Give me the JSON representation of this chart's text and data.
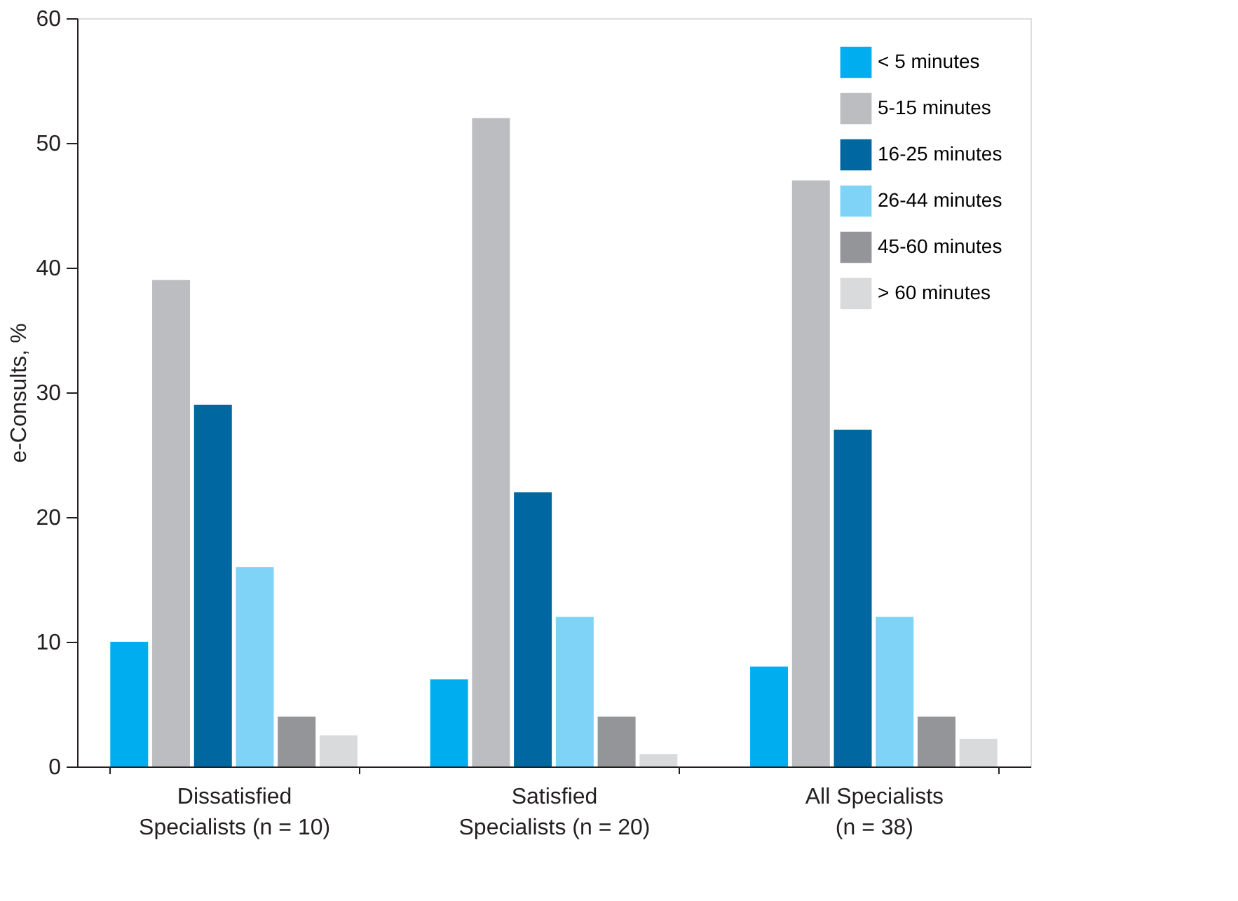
{
  "chart_data": {
    "type": "bar",
    "ylabel": "e-Consults, %",
    "categories": [
      "Dissatisfied\nSpecialists (n = 10)",
      "Satisfied\nSpecialists (n = 20)",
      "All Specialists\n(n = 38)"
    ],
    "series": [
      {
        "name": "< 5 minutes",
        "color": "#00aeef",
        "values": [
          10,
          7,
          8
        ]
      },
      {
        "name": "5-15 minutes",
        "color": "#bcbdc0",
        "values": [
          39,
          52,
          47
        ]
      },
      {
        "name": "16-25 minutes",
        "color": "#0067a0",
        "values": [
          29,
          22,
          27
        ]
      },
      {
        "name": "26-44 minutes",
        "color": "#7fd3f7",
        "values": [
          16,
          12,
          12
        ]
      },
      {
        "name": "45-60 minutes",
        "color": "#939598",
        "values": [
          4,
          4,
          4
        ]
      },
      {
        "name": "> 60 minutes",
        "color": "#d9dadb",
        "values": [
          2.5,
          1,
          2.2
        ]
      }
    ],
    "ylim": [
      0,
      60
    ],
    "yticks": [
      0,
      10,
      20,
      30,
      40,
      50,
      60
    ],
    "grid": false,
    "legend": "top right"
  }
}
